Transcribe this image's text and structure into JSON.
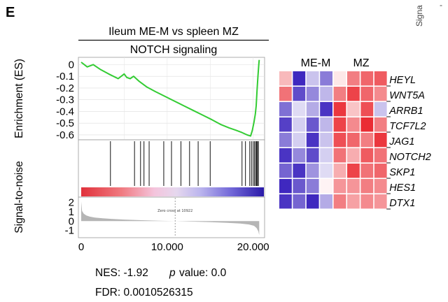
{
  "panel_label": "E",
  "corner_fragment": "Signa",
  "corner_dash": "-",
  "title_line1": "Ileum ME-M vs spleen MZ",
  "title_line2": "NOTCH signaling",
  "stats": {
    "nes": "NES: -1.92",
    "pvalue_label": "p",
    "pvalue_text": "value: 0.0",
    "fdr": "FDR:  0.0010526315"
  },
  "colors": {
    "es_line": "#33cc33",
    "heat_high": "#e8141c",
    "heat_low": "#2a10b8",
    "noise_fill": "#b5b5b5"
  },
  "chart_data": [
    {
      "type": "line",
      "name": "enrichment-score",
      "ylabel": "Enrichment (ES)",
      "ylim": [
        -0.63,
        0.05
      ],
      "xlim": [
        0,
        21000
      ],
      "yticks": [
        "0",
        "-0.1",
        "-0.2",
        "-0.3",
        "-0.4",
        "-0.5",
        "-0.6"
      ],
      "ytick_values": [
        0,
        -0.1,
        -0.2,
        -0.3,
        -0.4,
        -0.5,
        -0.6
      ],
      "grid": true,
      "x": [
        0,
        700,
        1400,
        2200,
        3200,
        4300,
        5000,
        5300,
        5700,
        6100,
        6700,
        7600,
        8600,
        9700,
        10800,
        11900,
        13000,
        14100,
        15200,
        16200,
        17200,
        18000,
        18700,
        19300,
        19700,
        19900,
        20100,
        20250,
        20350,
        20450,
        20550,
        20650,
        20700
      ],
      "y": [
        0.02,
        -0.02,
        0.0,
        -0.04,
        -0.08,
        -0.12,
        -0.08,
        -0.11,
        -0.12,
        -0.1,
        -0.14,
        -0.19,
        -0.23,
        -0.27,
        -0.31,
        -0.35,
        -0.39,
        -0.43,
        -0.47,
        -0.51,
        -0.54,
        -0.56,
        -0.58,
        -0.6,
        -0.61,
        -0.56,
        -0.49,
        -0.42,
        -0.35,
        -0.22,
        -0.1,
        0.0,
        0.04
      ]
    },
    {
      "type": "scatter",
      "name": "gene-hit-positions",
      "hits": [
        3400,
        6200,
        6900,
        7300,
        7900,
        9600,
        10500,
        11600,
        12600,
        13600,
        15000,
        18700,
        19100,
        19600,
        19800,
        20000,
        20150,
        20300,
        20400,
        20500,
        20600
      ]
    },
    {
      "type": "area",
      "name": "signal-to-noise",
      "ylabel": "Signal-to-noise",
      "ylim": [
        -1.7,
        2.5
      ],
      "xlim": [
        0,
        21000
      ],
      "yticks": [
        "2",
        "1",
        "0",
        "-1"
      ],
      "ytick_values": [
        2,
        1,
        0,
        -1
      ],
      "xticks": [
        "0",
        "10.000",
        "20.000"
      ],
      "xtick_values": [
        0,
        10000,
        20000
      ],
      "zero_cross_x": 10922,
      "zero_cross_label": "Zero cross at 10922",
      "x": [
        0,
        100,
        300,
        600,
        1000,
        1600,
        2500,
        3500,
        5000,
        7000,
        9000,
        10922,
        13000,
        15000,
        17000,
        18500,
        19500,
        20100,
        20400,
        20600,
        20700
      ],
      "y": [
        2.1,
        1.1,
        0.8,
        0.6,
        0.48,
        0.38,
        0.3,
        0.24,
        0.17,
        0.1,
        0.04,
        0.0,
        -0.05,
        -0.11,
        -0.18,
        -0.26,
        -0.36,
        -0.5,
        -0.75,
        -1.1,
        -1.5
      ]
    },
    {
      "type": "heatmap",
      "name": "gene-heatmap",
      "column_groups": [
        "ME-M",
        "MZ"
      ],
      "rows": [
        "HEYL",
        "WNT5A",
        "ARRB1",
        "TCF7L2",
        "JAG1",
        "NOTCH2",
        "SKP1",
        "HES1",
        "DTX1"
      ],
      "values": [
        [
          0.3,
          -0.9,
          -0.25,
          -0.55,
          0.1,
          0.55,
          0.65,
          0.7
        ],
        [
          0.6,
          -0.75,
          -0.5,
          -0.3,
          0.55,
          0.8,
          0.65,
          0.5
        ],
        [
          -0.6,
          -0.15,
          -0.35,
          -0.85,
          0.85,
          0.25,
          0.75,
          -0.25
        ],
        [
          -0.8,
          -0.2,
          -0.7,
          -0.3,
          0.8,
          0.5,
          0.9,
          0.55
        ],
        [
          -0.55,
          -0.2,
          -0.85,
          -0.25,
          0.75,
          0.65,
          0.55,
          0.85
        ],
        [
          -0.85,
          -0.5,
          -0.75,
          -0.2,
          0.6,
          0.35,
          0.7,
          0.6
        ],
        [
          -0.65,
          -0.85,
          -0.45,
          -0.15,
          0.35,
          0.8,
          0.6,
          0.65
        ],
        [
          -0.9,
          -0.7,
          -0.55,
          0.05,
          0.45,
          0.45,
          0.55,
          0.5
        ],
        [
          -0.85,
          -0.65,
          -0.9,
          -0.35,
          0.55,
          0.4,
          0.5,
          0.45
        ]
      ]
    }
  ]
}
